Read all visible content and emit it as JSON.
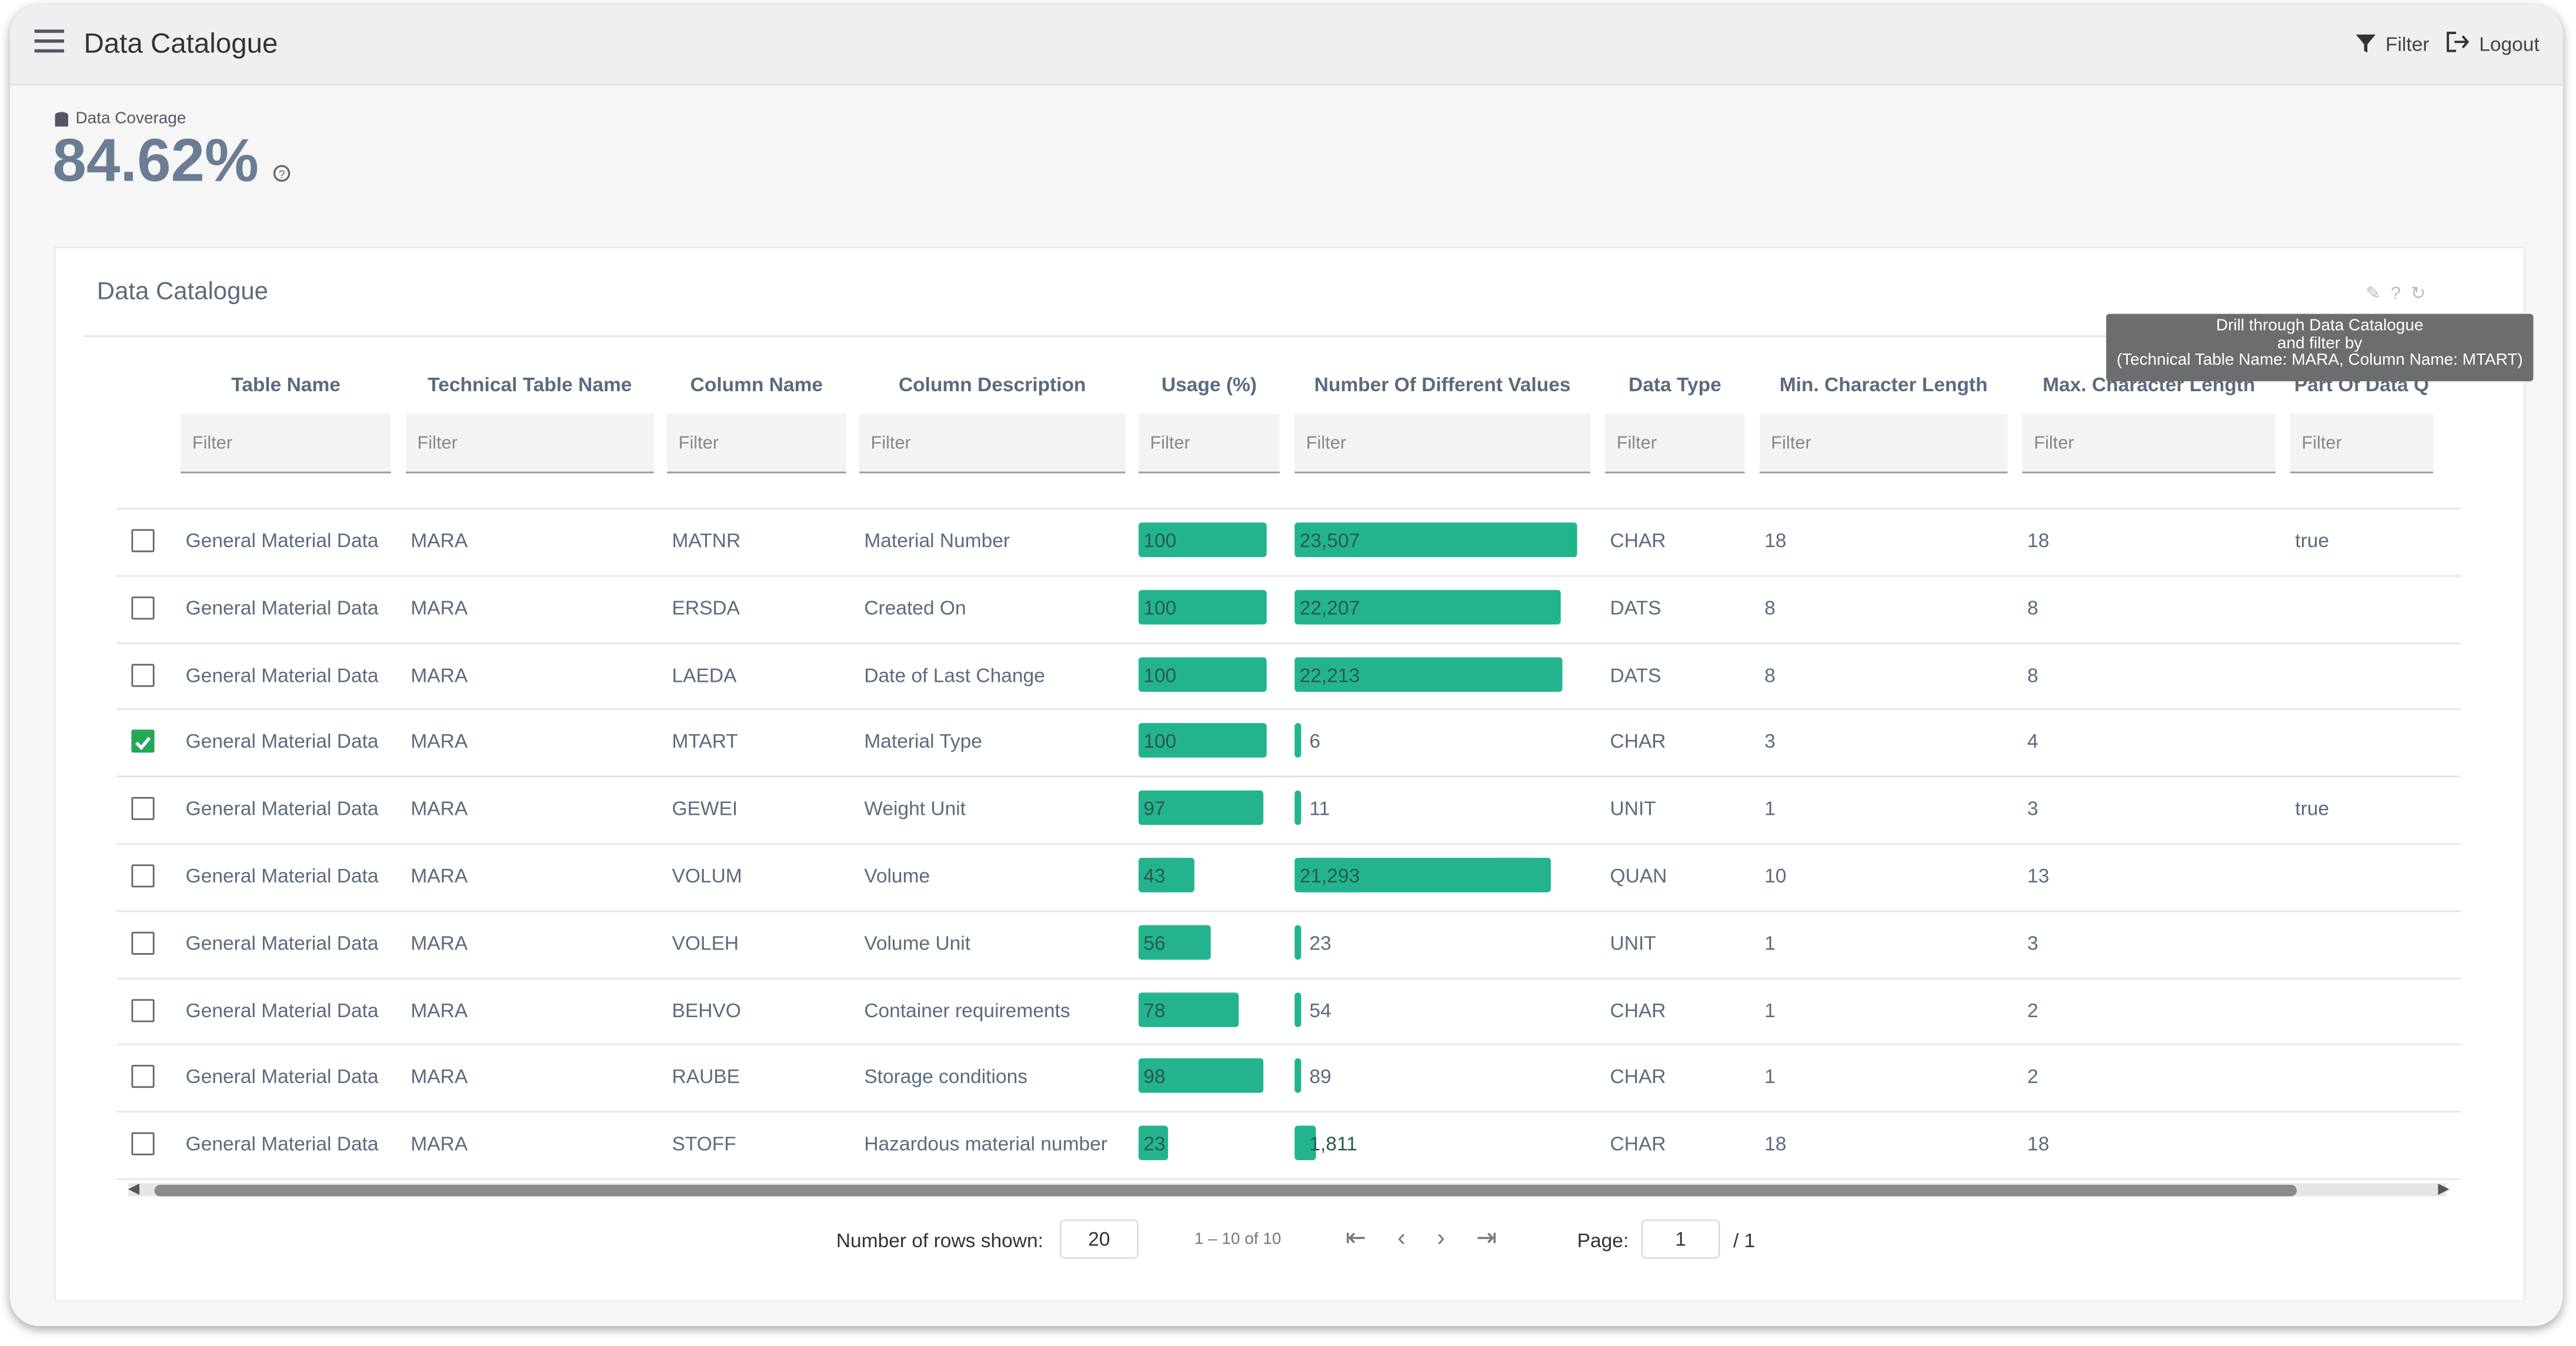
{
  "header": {
    "title": "Data Catalogue",
    "filter": "Filter",
    "logout": "Logout"
  },
  "coverage": {
    "label": "Data Coverage",
    "value": "84.62%"
  },
  "card": {
    "title": "Data Catalogue",
    "tooltip": [
      "Drill through Data Catalogue",
      "and filter by",
      "(Technical Table Name: MARA, Column Name: MTART)"
    ],
    "columns": [
      "Table Name",
      "Technical Table Name",
      "Column Name",
      "Column Description",
      "Usage (%)",
      "Number Of Different Values",
      "Data Type",
      "Min. Character Length",
      "Max. Character Length",
      "Part Of Data Q"
    ],
    "filter_placeholder": "Filter",
    "rows": [
      {
        "checked": false,
        "cells": [
          "General Material Data",
          "MARA",
          "MATNR",
          "Material Number",
          "100",
          "23,507",
          "CHAR",
          "18",
          "18",
          "true"
        ]
      },
      {
        "checked": false,
        "cells": [
          "General Material Data",
          "MARA",
          "ERSDA",
          "Created On",
          "100",
          "22,207",
          "DATS",
          "8",
          "8",
          null
        ]
      },
      {
        "checked": false,
        "cells": [
          "General Material Data",
          "MARA",
          "LAEDA",
          "Date of Last Change",
          "100",
          "22,213",
          "DATS",
          "8",
          "8",
          null
        ]
      },
      {
        "checked": true,
        "cells": [
          "General Material Data",
          "MARA",
          "MTART",
          "Material Type",
          "100",
          "6",
          "CHAR",
          "3",
          "4",
          null
        ]
      },
      {
        "checked": false,
        "cells": [
          "General Material Data",
          "MARA",
          "GEWEI",
          "Weight Unit",
          "97",
          "11",
          "UNIT",
          "1",
          "3",
          "true"
        ]
      },
      {
        "checked": false,
        "cells": [
          "General Material Data",
          "MARA",
          "VOLUM",
          "Volume",
          "43",
          "21,293",
          "QUAN",
          "10",
          "13",
          null
        ]
      },
      {
        "checked": false,
        "cells": [
          "General Material Data",
          "MARA",
          "VOLEH",
          "Volume Unit",
          "56",
          "23",
          "UNIT",
          "1",
          "3",
          null
        ]
      },
      {
        "checked": false,
        "cells": [
          "General Material Data",
          "MARA",
          "BEHVO",
          "Container requirements",
          "78",
          "54",
          "CHAR",
          "1",
          "2",
          null
        ]
      },
      {
        "checked": false,
        "cells": [
          "General Material Data",
          "MARA",
          "RAUBE",
          "Storage conditions",
          "98",
          "89",
          "CHAR",
          "1",
          "2",
          null
        ]
      },
      {
        "checked": false,
        "cells": [
          "General Material Data",
          "MARA",
          "STOFF",
          "Hazardous material number",
          "23",
          "1,811",
          "CHAR",
          "18",
          "18",
          null
        ]
      }
    ]
  },
  "pagination": {
    "rows_label": "Number of rows shown:",
    "rows_value": "20",
    "range": "1 – 10 of 10",
    "page_label": "Page:",
    "page_value": "1",
    "page_total": "/ 1"
  }
}
